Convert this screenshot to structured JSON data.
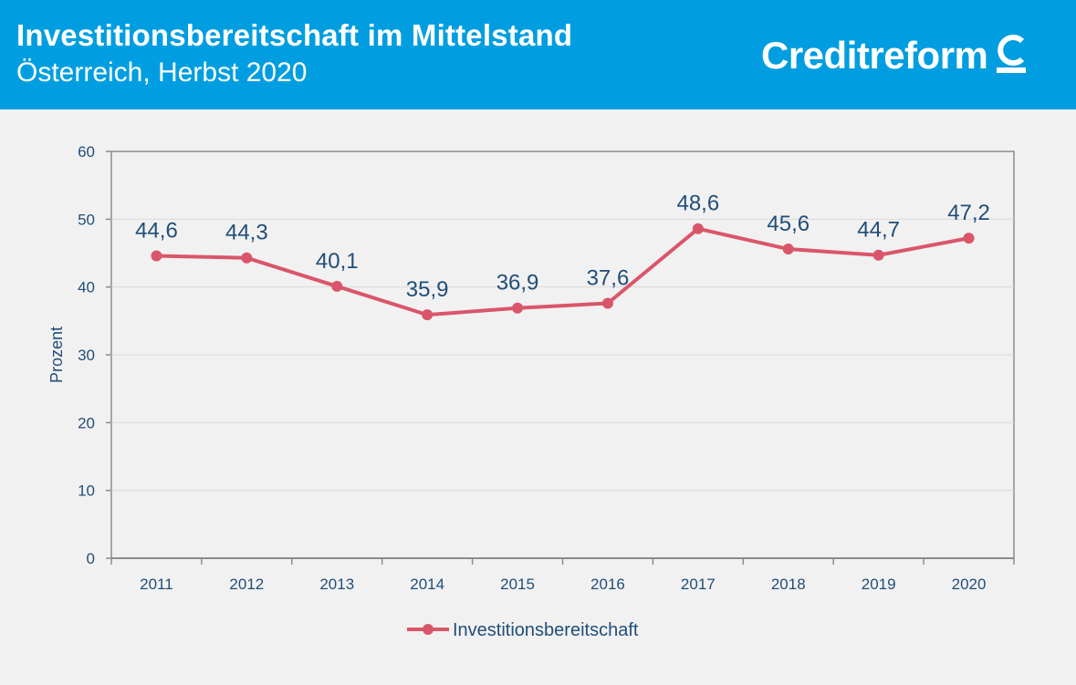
{
  "header": {
    "title": "Investitionsbereitschaft im Mittelstand",
    "subtitle": "Österreich, Herbst 2020",
    "logo_text": "Creditreform",
    "logo_icon": "creditreform-c-icon"
  },
  "colors": {
    "header_bg": "#009ee0",
    "line": "#d9566a",
    "axis_text": "#1f4e79",
    "grid": "#d9d9d9"
  },
  "chart_data": {
    "type": "line",
    "title": "",
    "xlabel": "",
    "ylabel": "Prozent",
    "ylim": [
      0,
      60
    ],
    "yticks": [
      0,
      10,
      20,
      30,
      40,
      50,
      60
    ],
    "categories": [
      "2011",
      "2012",
      "2013",
      "2014",
      "2015",
      "2016",
      "2017",
      "2018",
      "2019",
      "2020"
    ],
    "series": [
      {
        "name": "Investitionsbereitschaft",
        "values": [
          44.6,
          44.3,
          40.1,
          35.9,
          36.9,
          37.6,
          48.6,
          45.6,
          44.7,
          47.2
        ],
        "labels": [
          "44,6",
          "44,3",
          "40,1",
          "35,9",
          "36,9",
          "37,6",
          "48,6",
          "45,6",
          "44,7",
          "47,2"
        ]
      }
    ],
    "legend": {
      "position": "bottom",
      "label": "Investitionsbereitschaft"
    },
    "grid": true
  }
}
